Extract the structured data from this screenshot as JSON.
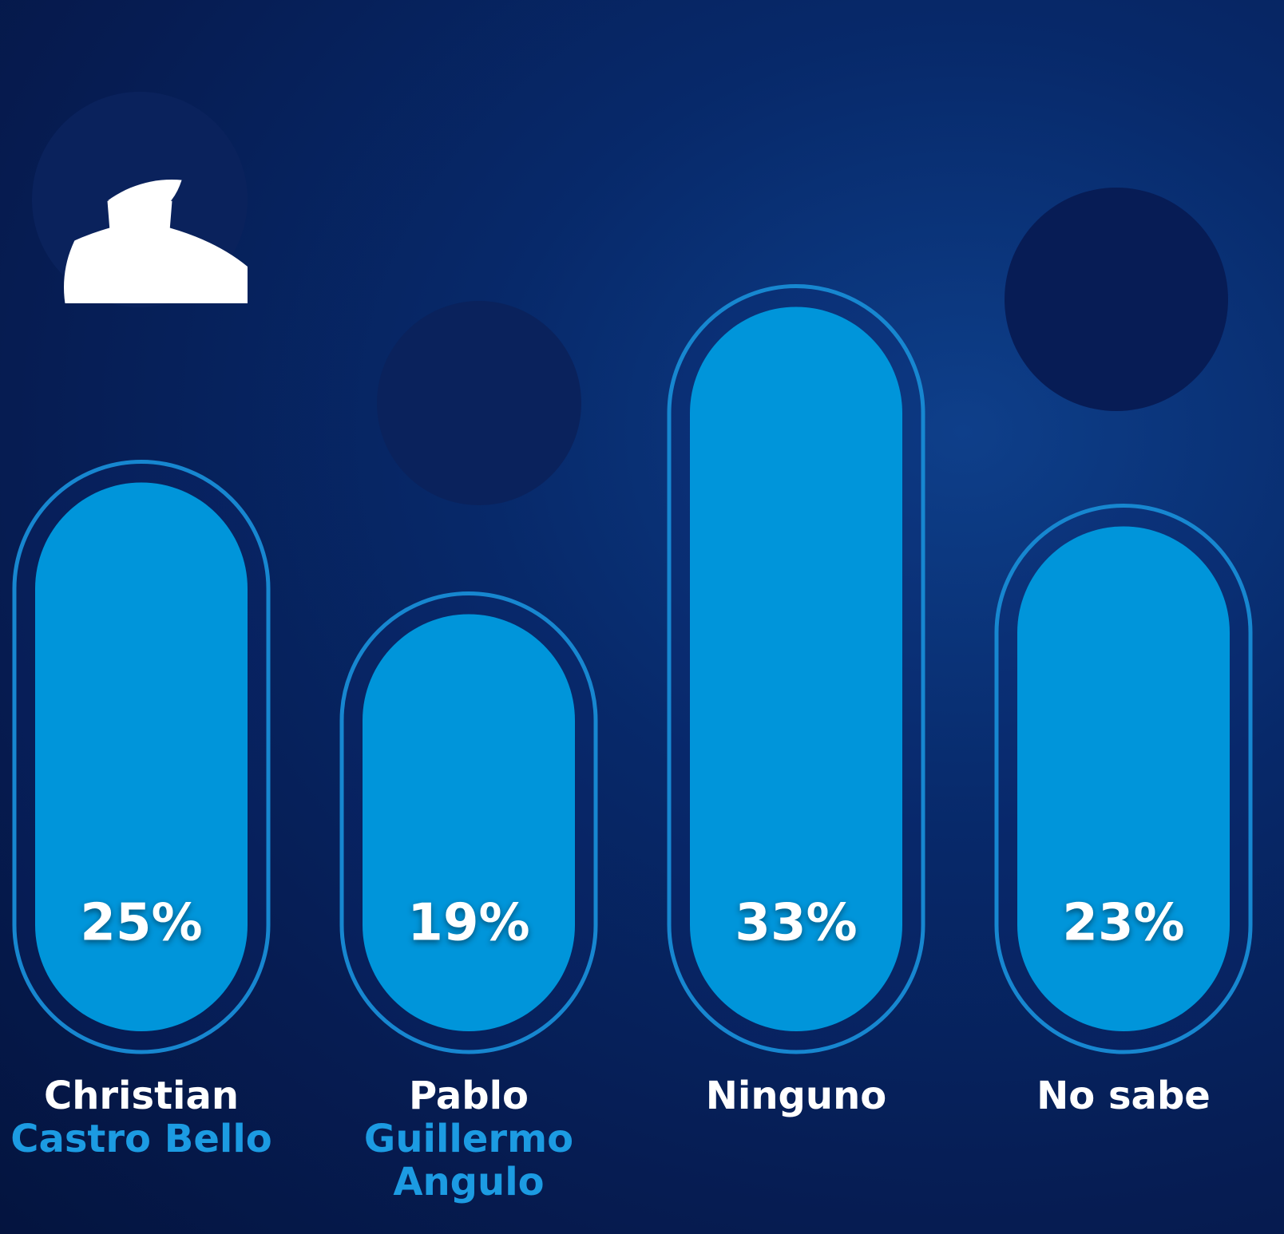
{
  "chart_data": {
    "type": "bar",
    "categories": [
      "Christian",
      "Pablo",
      "Ninguno",
      "No sabe"
    ],
    "category_sublabels": [
      "Castro Bello",
      "Guillermo Angulo",
      null,
      null
    ],
    "values": [
      25,
      19,
      33,
      23
    ],
    "value_labels": [
      "25%",
      "19%",
      "33%",
      "23%"
    ],
    "color": "#0095da",
    "outline_color": "#1787d0"
  }
}
